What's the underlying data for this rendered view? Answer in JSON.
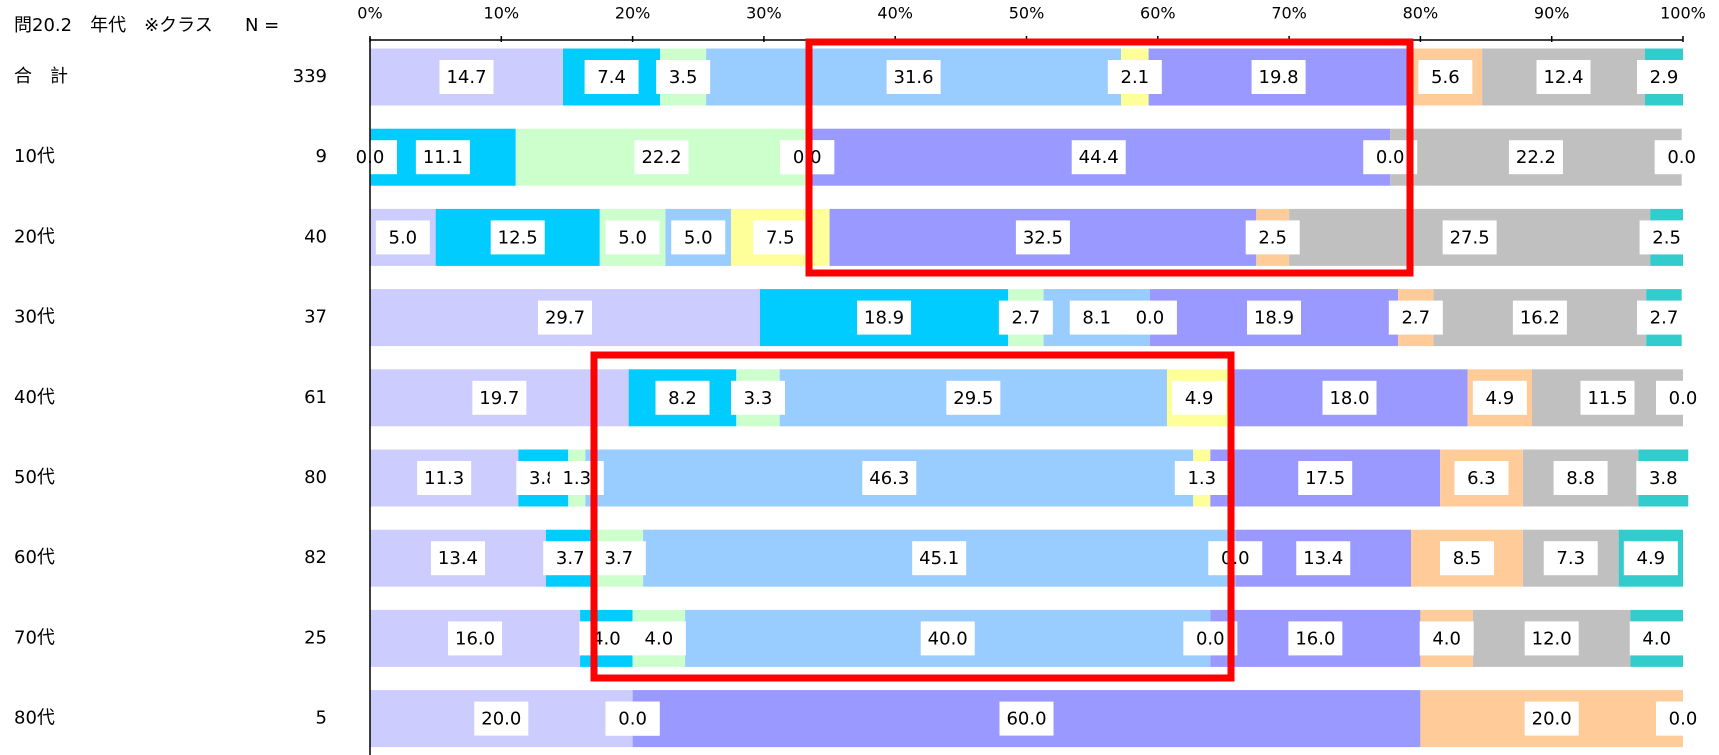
{
  "chart_data": {
    "type": "stacked-bar-horizontal",
    "title": "問20.2　年代　※クラス",
    "n_label": "N =",
    "categories": [
      "合　計",
      "10代",
      "20代",
      "30代",
      "40代",
      "50代",
      "60代",
      "70代",
      "80代"
    ],
    "n_values": [
      339,
      9,
      40,
      37,
      61,
      80,
      82,
      25,
      5
    ],
    "xlim": [
      0,
      100
    ],
    "xticks": [
      {
        "value": 0,
        "label": "0%"
      },
      {
        "value": 10,
        "label": "10%"
      },
      {
        "value": 20,
        "label": "20%"
      },
      {
        "value": 30,
        "label": "30%"
      },
      {
        "value": 40,
        "label": "40%"
      },
      {
        "value": 50,
        "label": "50%"
      },
      {
        "value": 60,
        "label": "60%"
      },
      {
        "value": 70,
        "label": "70%"
      },
      {
        "value": 80,
        "label": "80%"
      },
      {
        "value": 90,
        "label": "90%"
      },
      {
        "value": 100,
        "label": "100%"
      }
    ],
    "series": [
      {
        "color": "#ccccff",
        "values": [
          14.7,
          0,
          5,
          29.7,
          19.7,
          11.3,
          13.4,
          16,
          20
        ],
        "value_labels": [
          "14.7",
          "0.0",
          "5.0",
          "29.7",
          "19.7",
          "11.3",
          "13.4",
          "16.0",
          "20.0"
        ]
      },
      {
        "color": "#00ccff",
        "values": [
          7.4,
          11.1,
          12.5,
          18.9,
          8.2,
          3.8,
          3.7,
          4,
          0
        ],
        "value_labels": [
          "7.4",
          "11.1",
          "12.5",
          "18.9",
          "8.2",
          "3.8",
          "3.7",
          "4.0",
          "0.0"
        ]
      },
      {
        "color": "#ccffcc",
        "values": [
          3.5,
          22.2,
          5,
          2.7,
          3.3,
          1.3,
          3.7,
          4,
          0
        ],
        "value_labels": [
          "3.5",
          "22.2",
          "5.0",
          "2.7",
          "3.3",
          "1.3",
          "3.7",
          "4.0",
          "0.0"
        ]
      },
      {
        "color": "#99ccff",
        "values": [
          31.6,
          0,
          5,
          8.1,
          29.5,
          46.3,
          45.1,
          40,
          0
        ],
        "value_labels": [
          "31.6",
          "0.0",
          "5.0",
          "8.1",
          "29.5",
          "46.3",
          "45.1",
          "40.0",
          "0.0"
        ]
      },
      {
        "color": "#ffff99",
        "values": [
          2.1,
          0,
          7.5,
          0,
          4.9,
          1.3,
          0,
          0,
          0
        ],
        "value_labels": [
          "2.1",
          "0.0",
          "7.5",
          "0.0",
          "4.9",
          "1.3",
          "0.0",
          "0.0",
          "0.0"
        ]
      },
      {
        "color": "#9999ff",
        "values": [
          19.8,
          44.4,
          32.5,
          18.9,
          18,
          17.5,
          13.4,
          16,
          60
        ],
        "value_labels": [
          "19.8",
          "44.4",
          "32.5",
          "18.9",
          "18.0",
          "17.5",
          "13.4",
          "16.0",
          "60.0"
        ]
      },
      {
        "color": "#ffcc99",
        "values": [
          5.6,
          0,
          2.5,
          2.7,
          4.9,
          6.3,
          8.5,
          4,
          20
        ],
        "value_labels": [
          "5.6",
          "0.0",
          "2.5",
          "2.7",
          "4.9",
          "6.3",
          "8.5",
          "4.0",
          "20.0"
        ]
      },
      {
        "color": "#c0c0c0",
        "values": [
          12.4,
          22.2,
          27.5,
          16.2,
          11.5,
          8.8,
          7.3,
          12,
          0
        ],
        "value_labels": [
          "12.4",
          "22.2",
          "27.5",
          "16.2",
          "11.5",
          "8.8",
          "7.3",
          "12.0",
          "0.0"
        ]
      },
      {
        "color": "#33cccc",
        "values": [
          2.9,
          0,
          2.5,
          2.7,
          0,
          3.8,
          4.9,
          4,
          0
        ],
        "value_labels": [
          "2.9",
          "0.0",
          "2.5",
          "2.7",
          "0.0",
          "3.8",
          "4.9",
          "4.0",
          "0.0"
        ]
      }
    ]
  }
}
